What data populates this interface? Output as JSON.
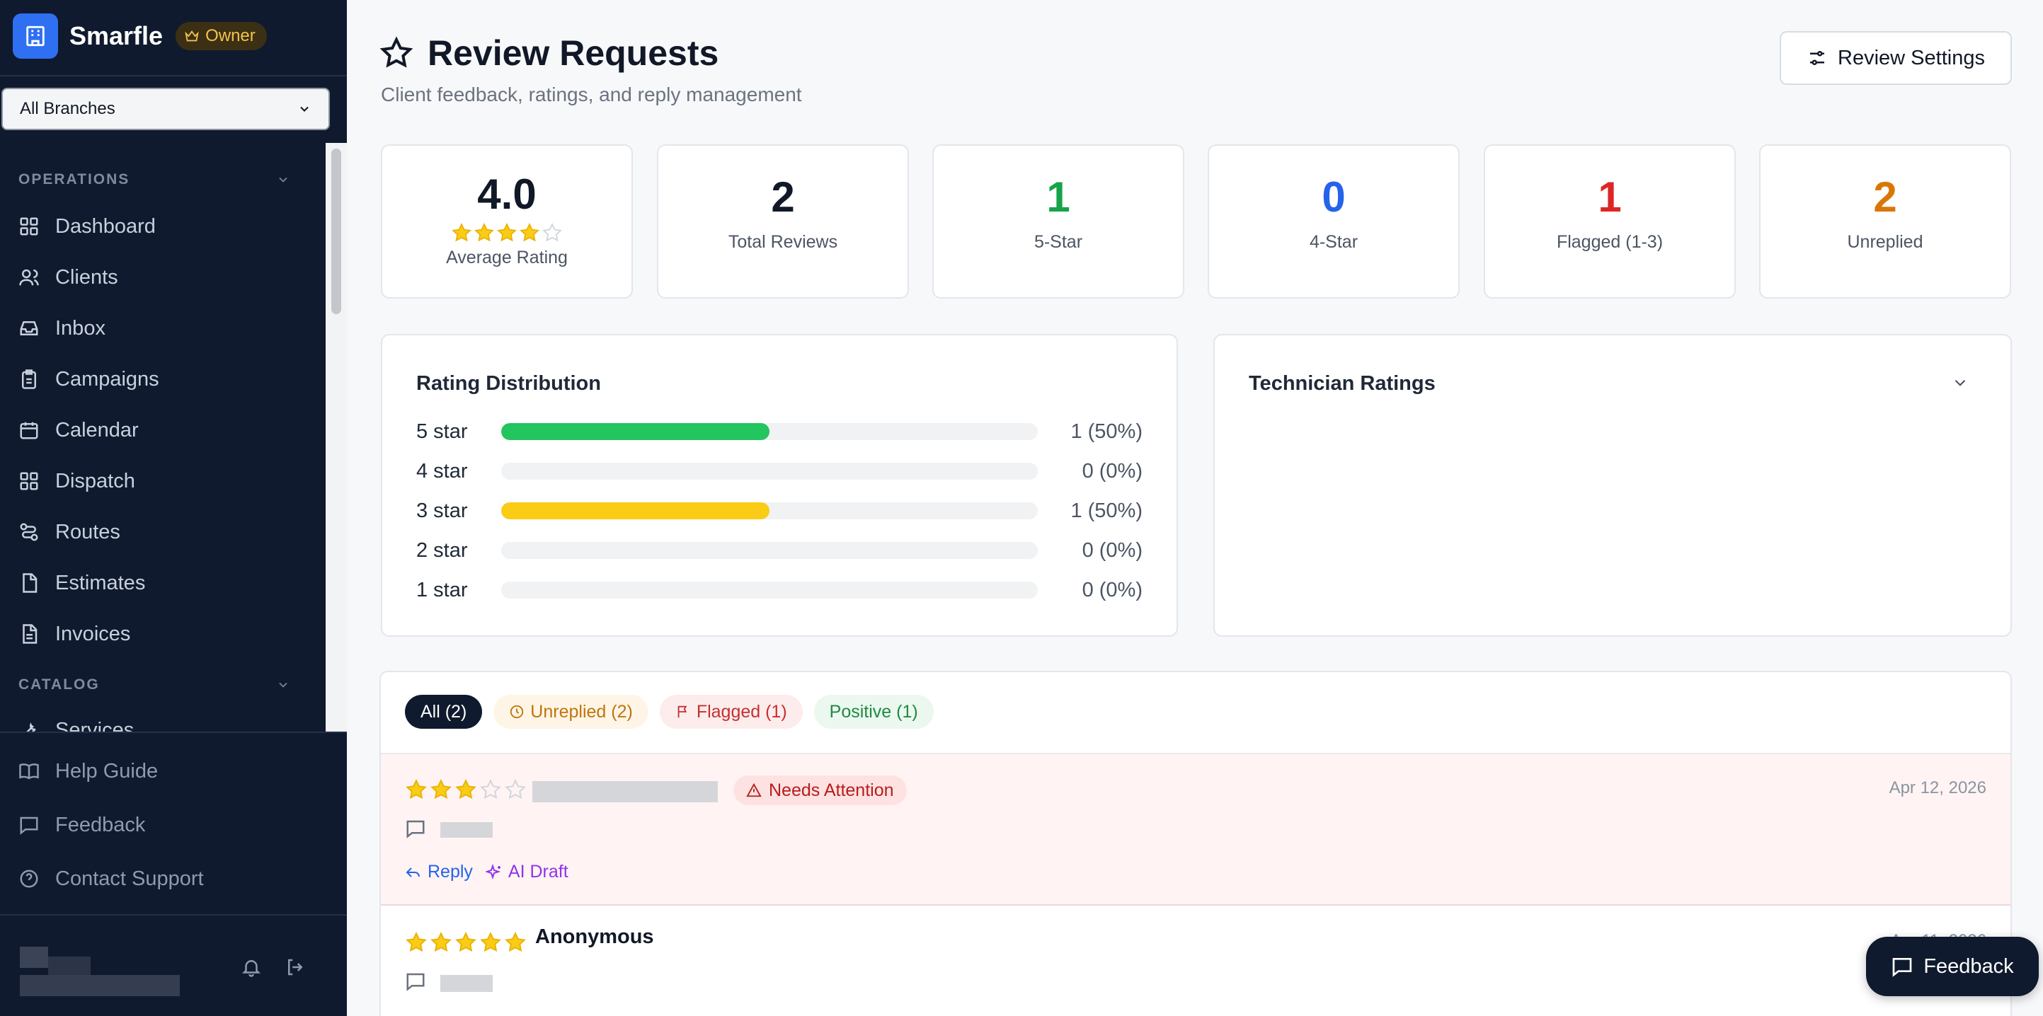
{
  "app": {
    "brand_name": "Smarfle",
    "owner_badge": "Owner",
    "branch_select": "All Branches"
  },
  "sidebar": {
    "operations_label": "OPERATIONS",
    "catalog_label": "CATALOG",
    "items": [
      {
        "label": "Dashboard",
        "icon": "grid-icon"
      },
      {
        "label": "Clients",
        "icon": "users-icon"
      },
      {
        "label": "Inbox",
        "icon": "inbox-icon"
      },
      {
        "label": "Campaigns",
        "icon": "clipboard-icon"
      },
      {
        "label": "Calendar",
        "icon": "calendar-icon"
      },
      {
        "label": "Dispatch",
        "icon": "grid-icon"
      },
      {
        "label": "Routes",
        "icon": "route-icon"
      },
      {
        "label": "Estimates",
        "icon": "file-icon"
      },
      {
        "label": "Invoices",
        "icon": "file-text-icon"
      }
    ],
    "catalog_items": [
      {
        "label": "Services",
        "icon": "wrench-icon"
      }
    ],
    "bottom": {
      "help": "Help Guide",
      "feedback": "Feedback",
      "support": "Contact Support"
    }
  },
  "header": {
    "title": "Review Requests",
    "subtitle": "Client feedback, ratings, and reply management",
    "settings_button": "Review Settings"
  },
  "stats": [
    {
      "value": "4.0",
      "label": "Average Rating",
      "color": "#111827",
      "stars": 4
    },
    {
      "value": "2",
      "label": "Total Reviews",
      "color": "#111827"
    },
    {
      "value": "1",
      "label": "5-Star",
      "color": "#16a34a"
    },
    {
      "value": "0",
      "label": "4-Star",
      "color": "#2563eb"
    },
    {
      "value": "1",
      "label": "Flagged (1-3)",
      "color": "#dc2626"
    },
    {
      "value": "2",
      "label": "Unreplied",
      "color": "#d97706"
    }
  ],
  "distribution": {
    "title": "Rating Distribution",
    "rows": [
      {
        "label": "5 star",
        "count": "1 (50%)",
        "fraction": 0.5,
        "color": "#22c55e"
      },
      {
        "label": "4 star",
        "count": "0 (0%)",
        "fraction": 0,
        "color": "#22c55e"
      },
      {
        "label": "3 star",
        "count": "1 (50%)",
        "fraction": 0.5,
        "color": "#facc15"
      },
      {
        "label": "2 star",
        "count": "0 (0%)",
        "fraction": 0,
        "color": "#facc15"
      },
      {
        "label": "1 star",
        "count": "0 (0%)",
        "fraction": 0,
        "color": "#ef4444"
      }
    ]
  },
  "technicians": {
    "title": "Technician Ratings"
  },
  "filters": [
    {
      "label": "All (2)",
      "active": true
    },
    {
      "label": "Unreplied (2)",
      "icon": "clock-icon"
    },
    {
      "label": "Flagged (1)",
      "icon": "flag-icon"
    },
    {
      "label": "Positive (1)"
    }
  ],
  "reviews": [
    {
      "stars": 3,
      "badge": "Needs Attention",
      "date": "Apr 12, 2026",
      "reply": "Reply",
      "ai_draft": "AI Draft"
    },
    {
      "stars": 5,
      "name": "Anonymous",
      "date": "Apr 11, 2026"
    }
  ],
  "fab": {
    "label": "Feedback"
  }
}
